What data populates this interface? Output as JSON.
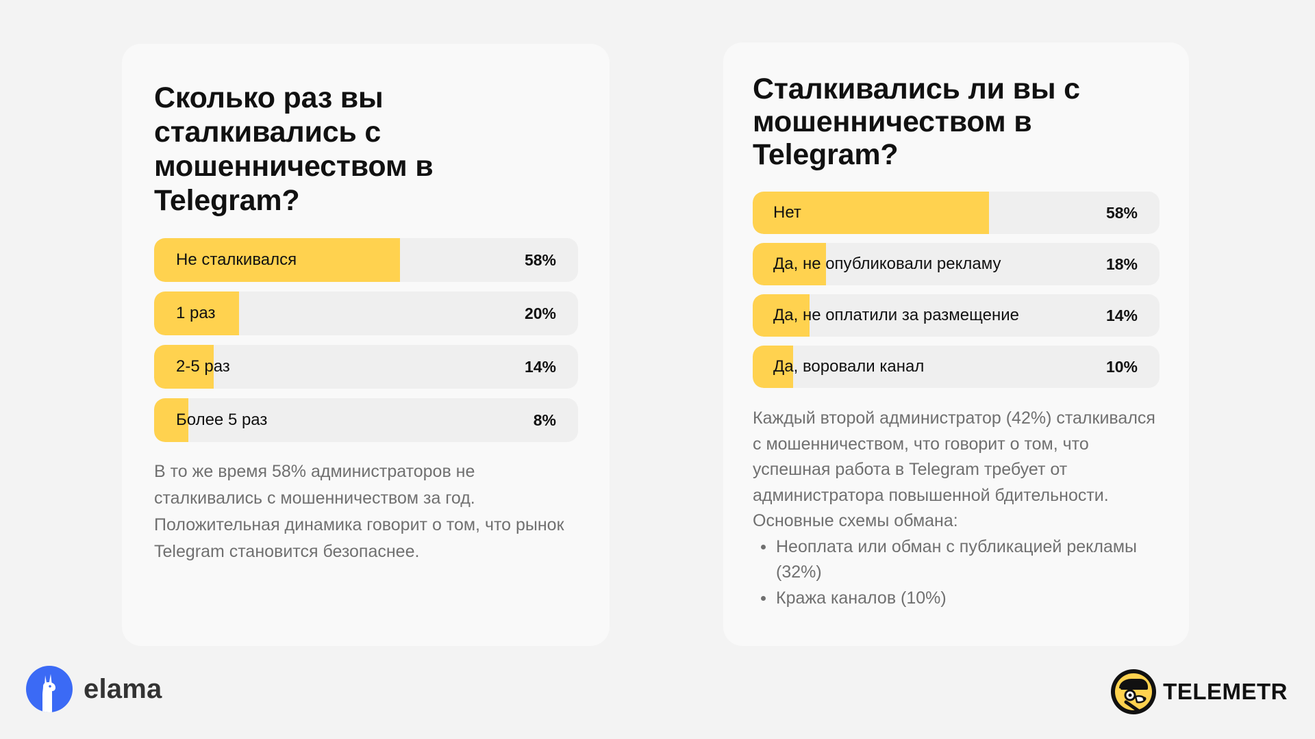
{
  "colors": {
    "background": "#f3f3f3",
    "card": "#f9f9f9",
    "bar_fill": "#ffd24f",
    "bar_track": "#efefef",
    "text_muted": "#707070",
    "elama_blue": "#3b6af5"
  },
  "chart_data": [
    {
      "type": "bar",
      "orientation": "horizontal",
      "title": "Сколько раз вы сталкивались с мошенничеством в Telegram?",
      "categories": [
        "Не сталкивался",
        "1 раз",
        "2-5 раз",
        "Более 5 раз"
      ],
      "values": [
        58,
        20,
        14,
        8
      ],
      "value_labels": [
        "58%",
        "20%",
        "14%",
        "8%"
      ],
      "xlim": [
        0,
        100
      ],
      "grid": false,
      "legend": "none"
    },
    {
      "type": "bar",
      "orientation": "horizontal",
      "title": "Сталкивались ли вы с мошенничеством в Telegram?",
      "categories": [
        "Нет",
        "Да, не опубликовали рекламу",
        "Да, не оплатили за размещение",
        "Да, воровали канал"
      ],
      "values": [
        58,
        18,
        14,
        10
      ],
      "value_labels": [
        "58%",
        "18%",
        "14%",
        "10%"
      ],
      "xlim": [
        0,
        100
      ],
      "grid": false,
      "legend": "none"
    }
  ],
  "left_card": {
    "text": "В то же время 58% администраторов не сталкивались с мошенничеством за год. Положительная динамика говорит о том, что рынок Telegram становится безопаснее."
  },
  "right_card": {
    "text": "Каждый второй администратор (42%) сталкивался с мошенничеством, что говорит о том, что успешная работа в Telegram требует от администратора повышенной бдительности. Основные схемы обмана:",
    "bullets": [
      "Неоплата или обман с публикацией рекламы (32%)",
      "Кража каналов (10%)"
    ]
  },
  "logos": {
    "left": {
      "name": "elama",
      "icon": "llama-icon"
    },
    "right": {
      "name": "TELEMETR",
      "icon": "dog-detective-icon"
    }
  }
}
